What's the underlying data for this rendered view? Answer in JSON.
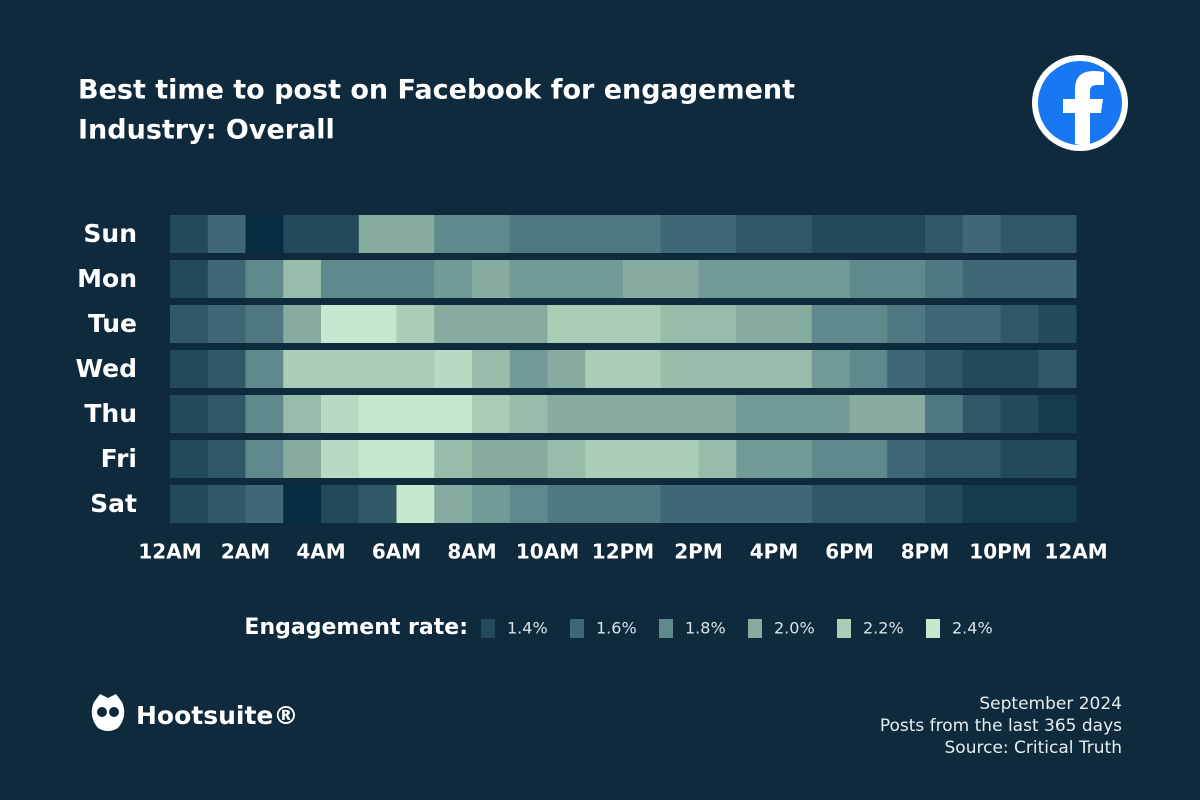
{
  "header": {
    "title": "Best time to post on Facebook for engagement",
    "subtitle": "Industry: Overall"
  },
  "chart_data": {
    "type": "heatmap",
    "rows": [
      "Sun",
      "Mon",
      "Tue",
      "Wed",
      "Thu",
      "Fri",
      "Sat"
    ],
    "xlim": [
      0,
      24
    ],
    "xticks": [
      {
        "value": 0,
        "label": "12AM"
      },
      {
        "value": 2,
        "label": "2AM"
      },
      {
        "value": 4,
        "label": "4AM"
      },
      {
        "value": 6,
        "label": "6AM"
      },
      {
        "value": 8,
        "label": "8AM"
      },
      {
        "value": 10,
        "label": "10AM"
      },
      {
        "value": 12,
        "label": "12PM"
      },
      {
        "value": 14,
        "label": "2PM"
      },
      {
        "value": 16,
        "label": "4PM"
      },
      {
        "value": 18,
        "label": "6PM"
      },
      {
        "value": 20,
        "label": "8PM"
      },
      {
        "value": 22,
        "label": "10PM"
      },
      {
        "value": 24,
        "label": "12AM"
      }
    ],
    "values": [
      [
        1.4,
        1.6,
        1.2,
        1.4,
        1.4,
        2.0,
        2.0,
        1.8,
        1.8,
        1.7,
        1.7,
        1.7,
        1.7,
        1.6,
        1.6,
        1.5,
        1.5,
        1.4,
        1.4,
        1.4,
        1.5,
        1.6,
        1.5,
        1.5
      ],
      [
        1.4,
        1.6,
        1.8,
        2.1,
        1.8,
        1.8,
        1.8,
        1.9,
        2.0,
        1.9,
        1.9,
        1.9,
        2.0,
        2.0,
        1.9,
        1.9,
        1.9,
        1.9,
        1.8,
        1.8,
        1.7,
        1.6,
        1.6,
        1.6
      ],
      [
        1.5,
        1.6,
        1.7,
        2.0,
        2.4,
        2.4,
        2.2,
        2.0,
        2.0,
        2.0,
        2.2,
        2.2,
        2.2,
        2.1,
        2.1,
        2.0,
        2.0,
        1.8,
        1.8,
        1.7,
        1.6,
        1.6,
        1.5,
        1.4
      ],
      [
        1.4,
        1.5,
        1.8,
        2.2,
        2.2,
        2.2,
        2.2,
        2.3,
        2.1,
        1.9,
        2.0,
        2.2,
        2.2,
        2.1,
        2.1,
        2.1,
        2.1,
        1.9,
        1.8,
        1.6,
        1.5,
        1.4,
        1.4,
        1.5
      ],
      [
        1.4,
        1.5,
        1.8,
        2.1,
        2.3,
        2.4,
        2.4,
        2.4,
        2.2,
        2.1,
        2.0,
        2.0,
        2.0,
        2.0,
        2.0,
        1.9,
        1.9,
        1.9,
        2.0,
        2.0,
        1.7,
        1.5,
        1.4,
        1.3
      ],
      [
        1.4,
        1.5,
        1.8,
        2.0,
        2.3,
        2.4,
        2.4,
        2.1,
        2.0,
        2.0,
        2.1,
        2.2,
        2.2,
        2.2,
        2.1,
        1.9,
        1.9,
        1.8,
        1.8,
        1.6,
        1.5,
        1.5,
        1.4,
        1.4
      ],
      [
        1.4,
        1.5,
        1.6,
        1.2,
        1.4,
        1.5,
        2.4,
        2.0,
        1.9,
        1.8,
        1.7,
        1.7,
        1.7,
        1.6,
        1.6,
        1.6,
        1.6,
        1.5,
        1.5,
        1.5,
        1.4,
        1.3,
        1.3,
        1.3
      ]
    ],
    "legend": {
      "title": "Engagement rate:",
      "items": [
        {
          "value": 1.4,
          "label": "1.4%",
          "color": "#24495b"
        },
        {
          "value": 1.6,
          "label": "1.6%",
          "color": "#3f6775"
        },
        {
          "value": 1.8,
          "label": "1.8%",
          "color": "#5e8a8e"
        },
        {
          "value": 2.0,
          "label": "2.0%",
          "color": "#86ab9f"
        },
        {
          "value": 2.2,
          "label": "2.2%",
          "color": "#a9cdb5"
        },
        {
          "value": 2.4,
          "label": "2.4%",
          "color": "#c7e8cf"
        }
      ]
    }
  },
  "footer": {
    "brand": "Hootsuite®",
    "lines": [
      "September 2024",
      "Posts from the last 365 days",
      "Source: Critical Truth"
    ]
  }
}
